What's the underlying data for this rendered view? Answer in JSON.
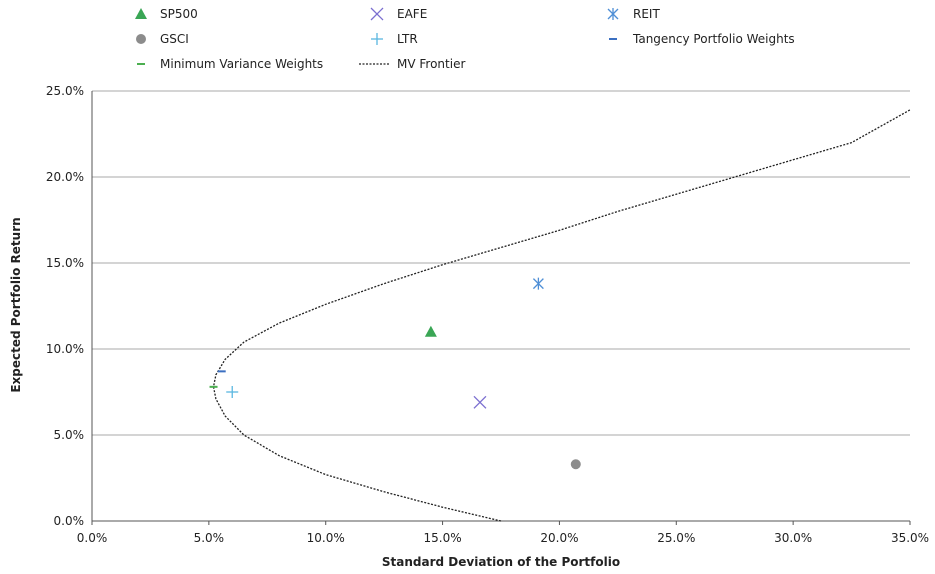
{
  "chart_data": {
    "type": "scatter",
    "xlabel": "Standard Deviation of the Portfolio",
    "ylabel": "Expected Portfolio Return",
    "xlim": [
      0,
      0.35
    ],
    "ylim": [
      0,
      0.25
    ],
    "x_ticks": [
      "0.0%",
      "5.0%",
      "10.0%",
      "15.0%",
      "20.0%",
      "25.0%",
      "30.0%",
      "35.0%"
    ],
    "y_ticks": [
      "0.0%",
      "5.0%",
      "10.0%",
      "15.0%",
      "20.0%",
      "25.0%"
    ],
    "grid": "horizontal",
    "legend_position": "top",
    "series": [
      {
        "name": "SP500",
        "marker": "triangle",
        "color": "#3aa655",
        "points": [
          [
            0.145,
            0.11
          ]
        ]
      },
      {
        "name": "EAFE",
        "marker": "x",
        "color": "#7b6fd0",
        "points": [
          [
            0.166,
            0.069
          ]
        ]
      },
      {
        "name": "REIT",
        "marker": "asterisk",
        "color": "#4f8fd6",
        "points": [
          [
            0.191,
            0.138
          ]
        ]
      },
      {
        "name": "GSCI",
        "marker": "circle",
        "color": "#8c8c8c",
        "points": [
          [
            0.207,
            0.033
          ]
        ]
      },
      {
        "name": "LTR",
        "marker": "plus",
        "color": "#5bb7e0",
        "points": [
          [
            0.06,
            0.075
          ]
        ]
      },
      {
        "name": "Tangency Portfolio Weights",
        "marker": "dash",
        "color": "#3b6fc1",
        "points": [
          [
            0.0555,
            0.087
          ]
        ]
      },
      {
        "name": "Minimum Variance Weights",
        "marker": "dash",
        "color": "#4caf50",
        "points": [
          [
            0.052,
            0.078
          ]
        ]
      },
      {
        "name": "MV Frontier",
        "marker": "line",
        "color": "#222222",
        "points": [
          [
            0.175,
            0.0
          ],
          [
            0.15,
            0.008
          ],
          [
            0.125,
            0.017
          ],
          [
            0.1,
            0.027
          ],
          [
            0.08,
            0.038
          ],
          [
            0.065,
            0.05
          ],
          [
            0.057,
            0.061
          ],
          [
            0.053,
            0.071
          ],
          [
            0.052,
            0.078
          ],
          [
            0.053,
            0.085
          ],
          [
            0.057,
            0.094
          ],
          [
            0.065,
            0.104
          ],
          [
            0.08,
            0.115
          ],
          [
            0.1,
            0.126
          ],
          [
            0.125,
            0.138
          ],
          [
            0.15,
            0.149
          ],
          [
            0.175,
            0.159
          ],
          [
            0.2,
            0.169
          ],
          [
            0.225,
            0.18
          ],
          [
            0.25,
            0.19
          ],
          [
            0.275,
            0.2
          ],
          [
            0.3,
            0.21
          ],
          [
            0.325,
            0.22
          ],
          [
            0.35,
            0.239
          ]
        ]
      }
    ]
  }
}
